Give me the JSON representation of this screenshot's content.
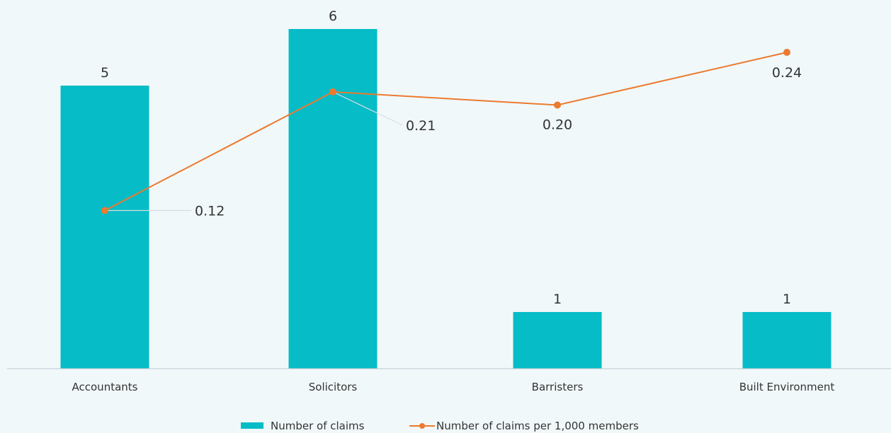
{
  "chart_data": {
    "type": "bar",
    "title": "",
    "xlabel": "",
    "ylabel": "",
    "categories": [
      "Accountants",
      "Solicitors",
      "Barristers",
      "Built Environment"
    ],
    "series": [
      {
        "name": "Number of claims",
        "type": "bar",
        "axis": "left",
        "color": "#06bcc7",
        "values": [
          5,
          6,
          1,
          1
        ],
        "labels": [
          "5",
          "6",
          "1",
          "1"
        ]
      },
      {
        "name": "Number of claims per 1,000 members",
        "type": "line",
        "axis": "right",
        "color": "#ec7a30",
        "values": [
          0.12,
          0.21,
          0.2,
          0.24
        ],
        "labels": [
          "0.12",
          "0.21",
          "0.20",
          "0.24"
        ]
      }
    ],
    "ylim_left": [
      0,
      6.3
    ],
    "ylim_right": [
      0,
      0.27
    ],
    "grid": false,
    "legend_position": "bottom"
  }
}
